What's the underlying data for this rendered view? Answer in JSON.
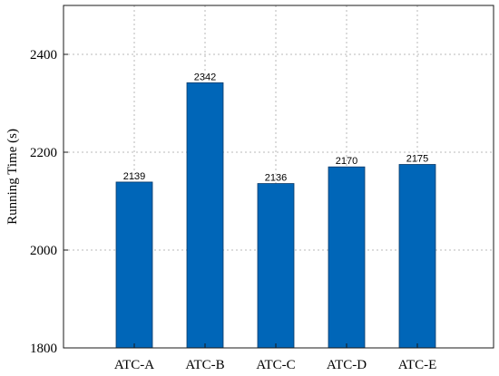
{
  "chart_data": {
    "type": "bar",
    "title": "",
    "xlabel": "",
    "ylabel": "Running Time (s)",
    "categories": [
      "ATC-A",
      "ATC-B",
      "ATC-C",
      "ATC-D",
      "ATC-E"
    ],
    "values": [
      2139,
      2342,
      2136,
      2170,
      2175
    ],
    "data_labels": [
      "2139",
      "2342",
      "2136",
      "2170",
      "2175"
    ],
    "ylim": [
      1800,
      2500
    ],
    "yticks": [
      1800,
      2000,
      2200,
      2400
    ],
    "ytick_labels": [
      "1800",
      "2000",
      "2200",
      "2400"
    ],
    "grid": true,
    "bar_color": "#0066b8",
    "bar_edge_color": "#0a3a66"
  }
}
